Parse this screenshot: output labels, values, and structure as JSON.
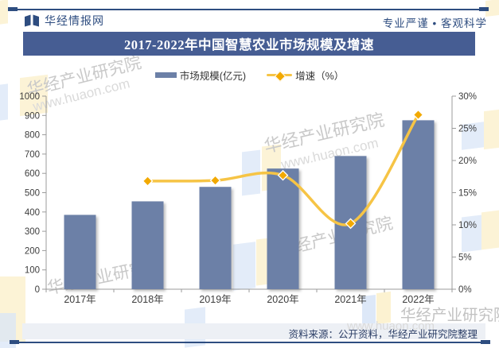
{
  "header": {
    "brand": "华经情报网",
    "slogan": "专业严谨 • 客观科学",
    "title": "2017-2022年中国智慧农业市场规模及增速"
  },
  "legend": {
    "items": [
      {
        "label": "市场规模(亿元)",
        "type": "bar",
        "color": "#6C80A7"
      },
      {
        "label": "增速（%）",
        "type": "line",
        "color": "#F6C445",
        "marker_color": "#F2A900"
      }
    ]
  },
  "chart_data": {
    "type": "bar",
    "title": "2017-2022年中国智慧农业市场规模及增速",
    "categories": [
      "2017年",
      "2018年",
      "2019年",
      "2020年",
      "2021年",
      "2022年"
    ],
    "series": [
      {
        "name": "市场规模(亿元)",
        "type": "bar",
        "axis": "left",
        "values": [
          385,
          455,
          530,
          625,
          690,
          875
        ],
        "color": "#6C80A7"
      },
      {
        "name": "增速（%）",
        "type": "line",
        "axis": "right",
        "values": [
          null,
          16.8,
          16.9,
          17.7,
          10.2,
          27.1
        ],
        "color": "#F6C445",
        "marker": "diamond",
        "marker_color": "#F2A900"
      }
    ],
    "left_axis": {
      "min": 0,
      "max": 1000,
      "step": 100,
      "ticks": [
        0,
        100,
        200,
        300,
        400,
        500,
        600,
        700,
        800,
        900,
        1000
      ]
    },
    "right_axis": {
      "min": 0,
      "max": 30,
      "step": 5,
      "ticks": [
        "0%",
        "5%",
        "10%",
        "15%",
        "20%",
        "25%",
        "30%"
      ]
    },
    "grid": false,
    "legend_position": "top"
  },
  "watermarks": {
    "brand": "华经产业研究院",
    "url": "www.huaon.com"
  },
  "source": {
    "text": "资料来源：公开资料，华经产业研究院整理"
  },
  "colors": {
    "accent_navy": "#2E4D80",
    "title_bg": "#465D93",
    "bar": "#6C80A7",
    "line": "#F6C445",
    "marker": "#F2A900",
    "axis": "#9b9b9b",
    "source_bg": "#EDF0F5"
  }
}
